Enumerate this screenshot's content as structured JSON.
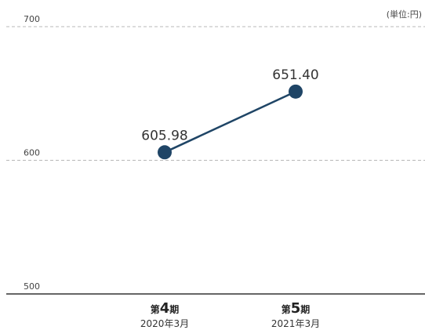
{
  "chart_data": {
    "type": "line",
    "unit": "(単位:円)",
    "ylim": [
      500,
      700
    ],
    "y_ticks": [
      700,
      600,
      500
    ],
    "grid": true,
    "categories": [
      {
        "prefix": "第",
        "number": "4",
        "suffix": "期",
        "date": "2020年3月"
      },
      {
        "prefix": "第",
        "number": "5",
        "suffix": "期",
        "date": "2021年3月"
      }
    ],
    "series": [
      {
        "values": [
          605.98,
          651.4
        ],
        "labels": [
          "605.98",
          "651.40"
        ],
        "color": "#1f4566"
      }
    ]
  }
}
